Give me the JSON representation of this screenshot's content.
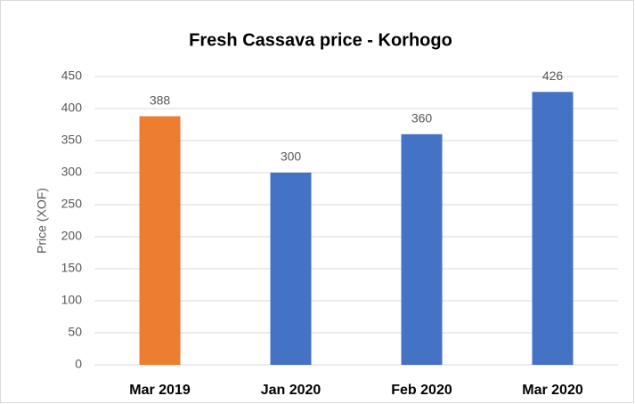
{
  "chart_data": {
    "type": "bar",
    "title": "Fresh Cassava price - Korhogo",
    "y_label": "Price (XOF)",
    "categories": [
      "Mar 2019",
      "Jan 2020",
      "Feb 2020",
      "Mar 2020"
    ],
    "values": [
      388,
      300,
      360,
      426
    ],
    "colors": [
      "#ed7d31",
      "#4472c4",
      "#4472c4",
      "#4472c4"
    ],
    "ylim": [
      0,
      450
    ],
    "yticks": [
      0,
      50,
      100,
      150,
      200,
      250,
      300,
      350,
      400,
      450
    ],
    "grid": true
  }
}
